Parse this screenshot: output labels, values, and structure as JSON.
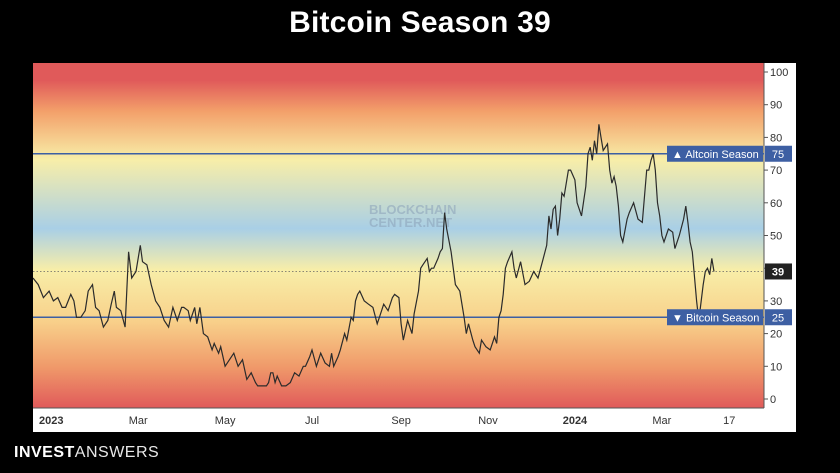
{
  "page": {
    "title": "Bitcoin Season 39"
  },
  "brand": {
    "part1": "INVEST",
    "part2": "ANSWERS"
  },
  "watermark": {
    "line1": "BLOCKCHAIN",
    "line2": "CENTER.NET"
  },
  "colors": {
    "red": "#e05a5a",
    "orange": "#f3a06a",
    "yellow": "#f8eea8",
    "blue": "#a9cfe6",
    "label_bg": "#3d5fa3",
    "line": "#2b2b2b",
    "current_bg": "#222222"
  },
  "chart_data": {
    "type": "line",
    "title": "Bitcoin Season 39",
    "xlabel": "",
    "ylabel": "",
    "ylim": [
      0,
      100
    ],
    "y_ticks": [
      "0",
      "10",
      "20",
      "30",
      "40",
      "50",
      "60",
      "70",
      "80",
      "90",
      "100"
    ],
    "x_ticks": [
      {
        "label": "2023",
        "t": 0.0,
        "bold": true
      },
      {
        "label": "Mar",
        "t": 2.0
      },
      {
        "label": "May",
        "t": 4.0
      },
      {
        "label": "Jul",
        "t": 6.0
      },
      {
        "label": "Sep",
        "t": 8.05
      },
      {
        "label": "Nov",
        "t": 10.05
      },
      {
        "label": "2024",
        "t": 12.05,
        "bold": true
      },
      {
        "label": "Mar",
        "t": 14.05
      },
      {
        "label": "17",
        "t": 15.6
      }
    ],
    "t_range": [
      -0.42,
      16.4
    ],
    "grid": false,
    "gradient_background": true,
    "reference_lines": [
      {
        "label": "Altcoin Season",
        "value": 75,
        "value_label": "75",
        "arrow": "▲"
      },
      {
        "label": "Bitcoin Season",
        "value": 25,
        "value_label": "25",
        "arrow": "▼"
      }
    ],
    "current": {
      "value": 39,
      "value_label": "39"
    },
    "series": [
      {
        "values": [
          [
            -0.42,
            37
          ],
          [
            -0.3,
            35
          ],
          [
            -0.18,
            31
          ],
          [
            -0.05,
            33
          ],
          [
            0.05,
            30
          ],
          [
            0.15,
            31
          ],
          [
            0.25,
            28
          ],
          [
            0.33,
            28
          ],
          [
            0.45,
            32
          ],
          [
            0.52,
            30
          ],
          [
            0.58,
            25
          ],
          [
            0.68,
            25
          ],
          [
            0.78,
            27
          ],
          [
            0.85,
            33
          ],
          [
            0.95,
            35
          ],
          [
            1.02,
            28
          ],
          [
            1.1,
            27
          ],
          [
            1.2,
            22
          ],
          [
            1.3,
            24
          ],
          [
            1.38,
            29
          ],
          [
            1.45,
            33
          ],
          [
            1.5,
            28
          ],
          [
            1.6,
            27
          ],
          [
            1.7,
            22
          ],
          [
            1.78,
            45
          ],
          [
            1.85,
            37
          ],
          [
            1.95,
            39
          ],
          [
            2.05,
            47
          ],
          [
            2.1,
            42
          ],
          [
            2.2,
            41
          ],
          [
            2.3,
            35
          ],
          [
            2.4,
            30
          ],
          [
            2.5,
            28
          ],
          [
            2.6,
            24
          ],
          [
            2.7,
            22
          ],
          [
            2.8,
            28
          ],
          [
            2.9,
            24
          ],
          [
            3.0,
            28
          ],
          [
            3.05,
            28
          ],
          [
            3.15,
            27
          ],
          [
            3.2,
            24
          ],
          [
            3.3,
            28
          ],
          [
            3.35,
            23
          ],
          [
            3.42,
            28
          ],
          [
            3.5,
            20
          ],
          [
            3.6,
            19
          ],
          [
            3.7,
            15
          ],
          [
            3.75,
            17
          ],
          [
            3.85,
            14
          ],
          [
            3.9,
            16
          ],
          [
            4.0,
            10
          ],
          [
            4.1,
            12
          ],
          [
            4.2,
            14
          ],
          [
            4.3,
            10
          ],
          [
            4.4,
            12
          ],
          [
            4.5,
            6
          ],
          [
            4.6,
            8
          ],
          [
            4.7,
            5
          ],
          [
            4.75,
            4
          ],
          [
            4.85,
            4
          ],
          [
            4.95,
            4
          ],
          [
            5.0,
            5
          ],
          [
            5.05,
            8
          ],
          [
            5.1,
            8
          ],
          [
            5.15,
            5
          ],
          [
            5.2,
            7
          ],
          [
            5.3,
            4
          ],
          [
            5.4,
            4
          ],
          [
            5.5,
            5
          ],
          [
            5.6,
            8
          ],
          [
            5.7,
            7
          ],
          [
            5.8,
            10
          ],
          [
            5.85,
            10
          ],
          [
            5.95,
            13
          ],
          [
            6.0,
            15
          ],
          [
            6.1,
            10
          ],
          [
            6.2,
            14
          ],
          [
            6.3,
            11
          ],
          [
            6.4,
            10
          ],
          [
            6.45,
            14
          ],
          [
            6.5,
            10
          ],
          [
            6.6,
            13
          ],
          [
            6.65,
            15
          ],
          [
            6.75,
            20
          ],
          [
            6.8,
            18
          ],
          [
            6.9,
            25
          ],
          [
            6.95,
            24
          ],
          [
            7.0,
            30
          ],
          [
            7.05,
            32
          ],
          [
            7.1,
            33
          ],
          [
            7.2,
            30
          ],
          [
            7.3,
            29
          ],
          [
            7.4,
            28
          ],
          [
            7.5,
            23
          ],
          [
            7.55,
            25
          ],
          [
            7.65,
            29
          ],
          [
            7.75,
            27
          ],
          [
            7.85,
            31
          ],
          [
            7.9,
            32
          ],
          [
            8.0,
            31
          ],
          [
            8.05,
            23
          ],
          [
            8.1,
            18
          ],
          [
            8.2,
            24
          ],
          [
            8.3,
            20
          ],
          [
            8.35,
            26
          ],
          [
            8.45,
            33
          ],
          [
            8.5,
            40
          ],
          [
            8.55,
            41
          ],
          [
            8.65,
            43
          ],
          [
            8.7,
            39
          ],
          [
            8.75,
            40
          ],
          [
            8.8,
            40
          ],
          [
            8.9,
            43
          ],
          [
            8.95,
            45
          ],
          [
            9.0,
            46
          ],
          [
            9.05,
            57
          ],
          [
            9.1,
            52
          ],
          [
            9.2,
            45
          ],
          [
            9.3,
            35
          ],
          [
            9.4,
            33
          ],
          [
            9.5,
            25
          ],
          [
            9.55,
            20
          ],
          [
            9.6,
            23
          ],
          [
            9.7,
            18
          ],
          [
            9.75,
            16
          ],
          [
            9.85,
            14
          ],
          [
            9.9,
            18
          ],
          [
            10.0,
            16
          ],
          [
            10.1,
            15
          ],
          [
            10.2,
            19
          ],
          [
            10.25,
            17
          ],
          [
            10.3,
            25
          ],
          [
            10.35,
            27
          ],
          [
            10.4,
            32
          ],
          [
            10.45,
            40
          ],
          [
            10.5,
            42
          ],
          [
            10.6,
            45
          ],
          [
            10.65,
            40
          ],
          [
            10.7,
            37
          ],
          [
            10.8,
            42
          ],
          [
            10.9,
            35
          ],
          [
            11.0,
            36
          ],
          [
            11.1,
            39
          ],
          [
            11.2,
            37
          ],
          [
            11.3,
            42
          ],
          [
            11.4,
            47
          ],
          [
            11.45,
            56
          ],
          [
            11.5,
            52
          ],
          [
            11.55,
            58
          ],
          [
            11.6,
            59
          ],
          [
            11.65,
            50
          ],
          [
            11.7,
            55
          ],
          [
            11.75,
            63
          ],
          [
            11.8,
            62
          ],
          [
            11.9,
            70
          ],
          [
            11.95,
            70
          ],
          [
            12.05,
            67
          ],
          [
            12.1,
            60
          ],
          [
            12.15,
            58
          ],
          [
            12.2,
            56
          ],
          [
            12.3,
            65
          ],
          [
            12.35,
            75
          ],
          [
            12.4,
            77
          ],
          [
            12.45,
            73
          ],
          [
            12.5,
            79
          ],
          [
            12.55,
            75
          ],
          [
            12.6,
            84
          ],
          [
            12.65,
            80
          ],
          [
            12.7,
            76
          ],
          [
            12.8,
            78
          ],
          [
            12.85,
            70
          ],
          [
            12.9,
            66
          ],
          [
            12.95,
            68
          ],
          [
            13.0,
            65
          ],
          [
            13.05,
            59
          ],
          [
            13.1,
            50
          ],
          [
            13.15,
            48
          ],
          [
            13.25,
            55
          ],
          [
            13.3,
            57
          ],
          [
            13.4,
            60
          ],
          [
            13.5,
            55
          ],
          [
            13.6,
            54
          ],
          [
            13.7,
            70
          ],
          [
            13.75,
            70
          ],
          [
            13.8,
            73
          ],
          [
            13.85,
            75
          ],
          [
            13.9,
            70
          ],
          [
            13.95,
            60
          ],
          [
            14.0,
            56
          ],
          [
            14.05,
            50
          ],
          [
            14.1,
            48
          ],
          [
            14.2,
            52
          ],
          [
            14.3,
            51
          ],
          [
            14.35,
            46
          ],
          [
            14.45,
            50
          ],
          [
            14.55,
            55
          ],
          [
            14.6,
            59
          ],
          [
            14.65,
            54
          ],
          [
            14.7,
            48
          ],
          [
            14.75,
            45
          ],
          [
            14.85,
            30
          ],
          [
            14.9,
            24
          ],
          [
            15.0,
            35
          ],
          [
            15.05,
            39
          ],
          [
            15.1,
            40
          ],
          [
            15.15,
            38
          ],
          [
            15.2,
            43
          ],
          [
            15.25,
            39
          ]
        ]
      }
    ]
  }
}
